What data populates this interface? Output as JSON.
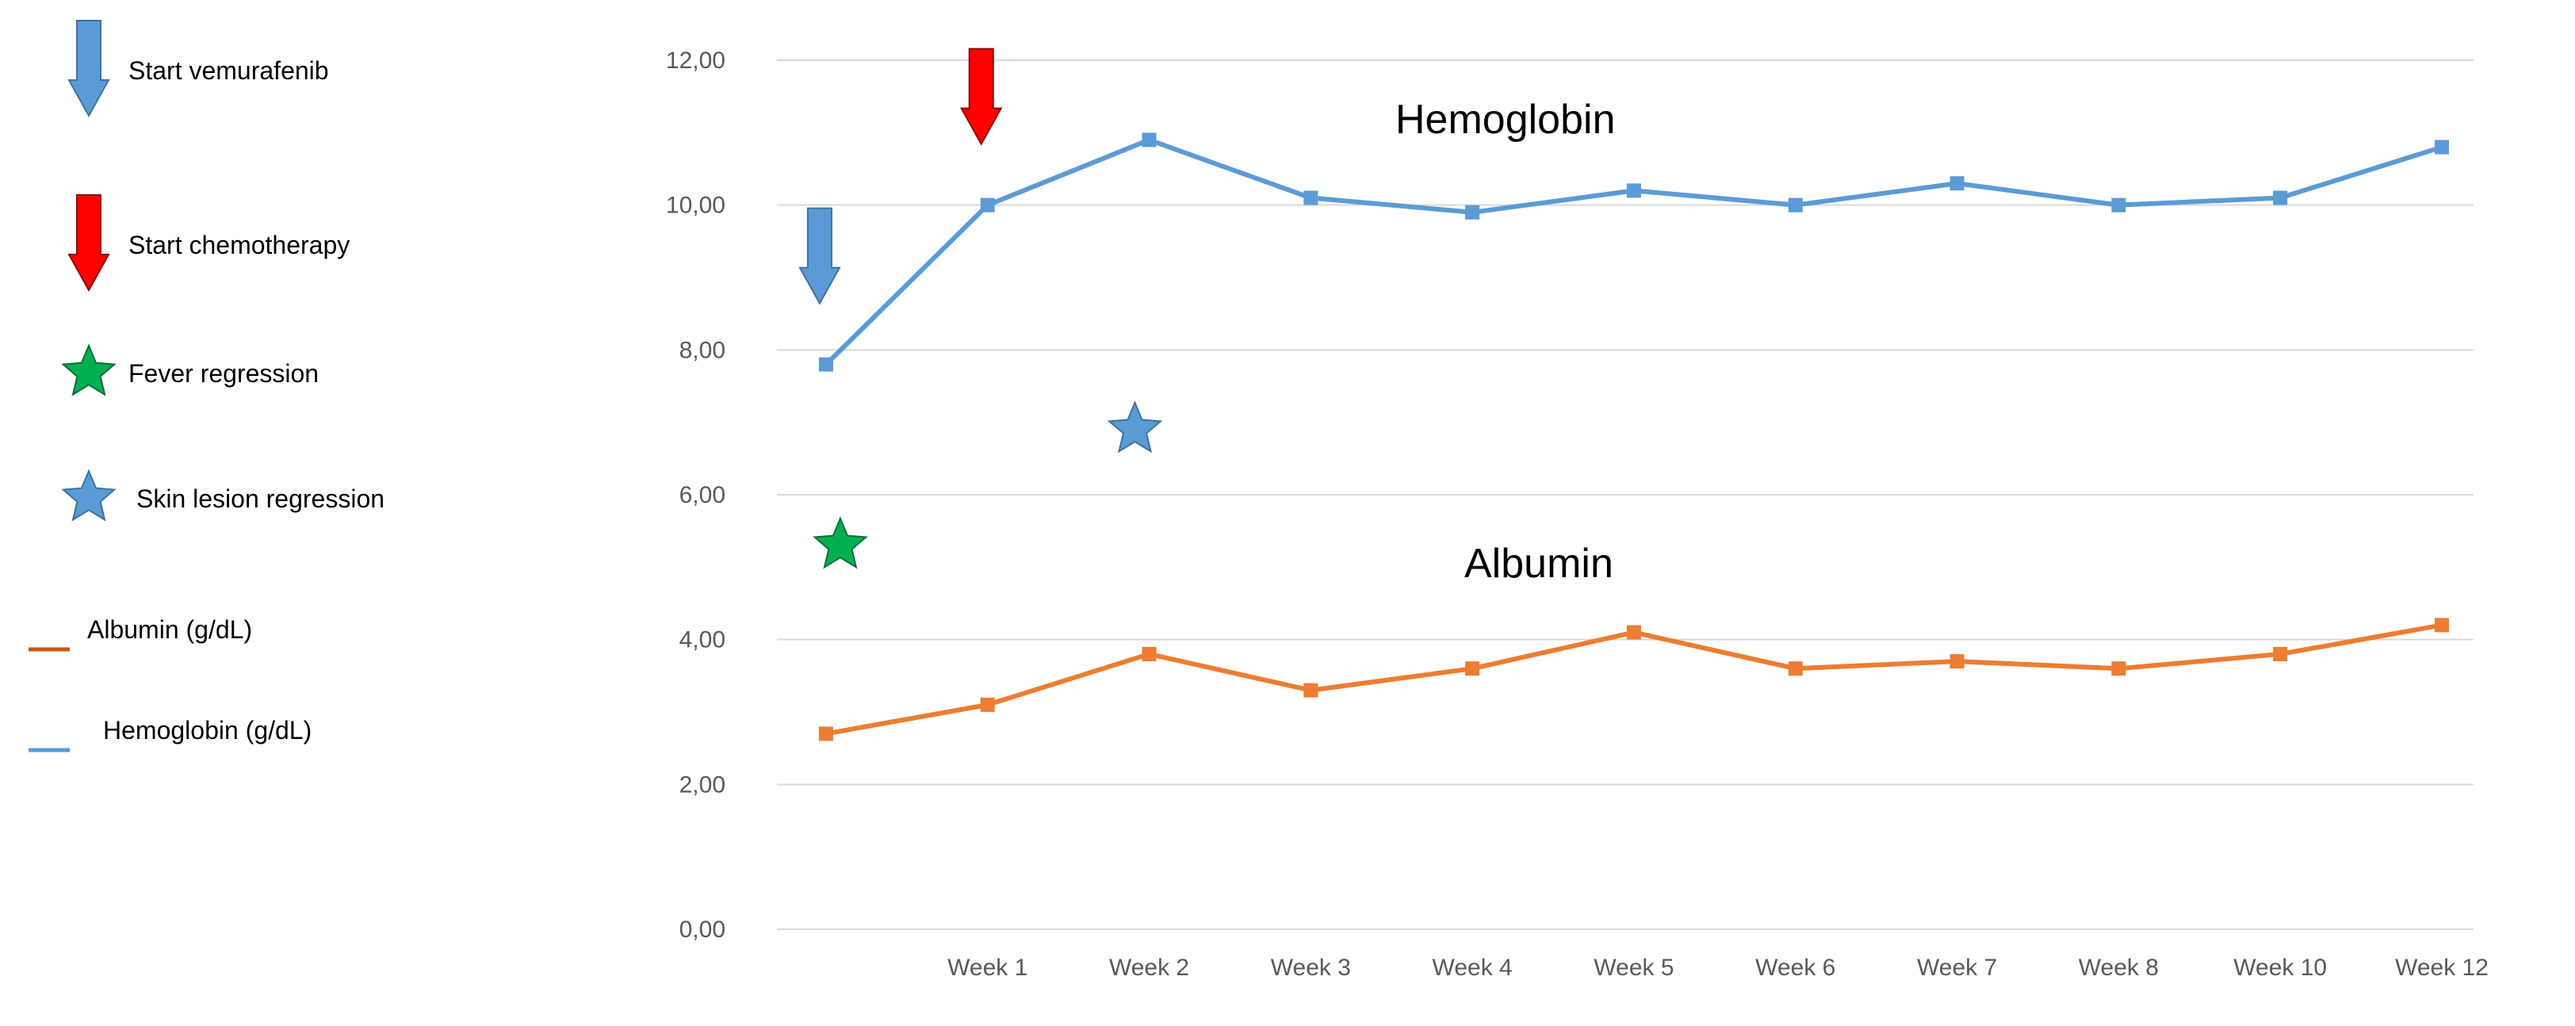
{
  "chart_data": {
    "type": "line",
    "categories": [
      "",
      "Week 1",
      "Week 2",
      "Week 3",
      "Week 4",
      "Week 5",
      "Week 6",
      "Week 7",
      "Week 8",
      "Week 10",
      "Week 12"
    ],
    "series": [
      {
        "name": "Hemoglobin (g/dL)",
        "color": "#5b9bd5",
        "values": [
          7.8,
          10.0,
          10.9,
          10.1,
          9.9,
          10.2,
          10.0,
          10.3,
          10.0,
          10.1,
          10.8
        ]
      },
      {
        "name": "Albumin (g/dL)",
        "color": "#ed7d31",
        "values": [
          2.7,
          3.1,
          3.8,
          3.3,
          3.6,
          4.1,
          3.6,
          3.7,
          3.6,
          3.8,
          4.2
        ]
      }
    ],
    "yticks": [
      "0,00",
      "2,00",
      "4,00",
      "6,00",
      "8,00",
      "10,00",
      "12,00"
    ],
    "ylim": [
      0,
      12
    ],
    "grid": true,
    "annotations": [
      {
        "text": "Hemoglobin"
      },
      {
        "text": "Albumin"
      }
    ],
    "event_markers": [
      {
        "event": "Start vemurafenib",
        "icon": "down-arrow-icon",
        "color": "#5b9bd5",
        "category_index": 0,
        "y": 9.3
      },
      {
        "event": "Start chemotherapy",
        "icon": "down-arrow-icon",
        "color": "#ff0000",
        "category_index": 1,
        "y": 11.5
      },
      {
        "event": "Fever regression",
        "icon": "star-icon",
        "color": "#00b050",
        "category_index": 0,
        "y": 5.3
      },
      {
        "event": "Skin lesion regression",
        "icon": "star-icon",
        "color": "#5b9bd5",
        "category_index": 2,
        "y": 6.9
      }
    ],
    "legend": {
      "placement": "left",
      "items": [
        {
          "label": "Start vemurafenib",
          "icon": "down-arrow-icon",
          "color": "#5b9bd5"
        },
        {
          "label": "Start chemotherapy",
          "icon": "down-arrow-icon",
          "color": "#ff0000"
        },
        {
          "label": "Fever regression",
          "icon": "star-icon",
          "color": "#00b050"
        },
        {
          "label": "Skin lesion regression",
          "icon": "star-icon",
          "color": "#5b9bd5"
        },
        {
          "label": "Albumin (g/dL)",
          "icon": "line-swatch-icon",
          "color": "#c55a11"
        },
        {
          "label": "Hemoglobin (g/dL)",
          "icon": "line-swatch-icon",
          "color": "#5b9bd5"
        }
      ]
    }
  }
}
